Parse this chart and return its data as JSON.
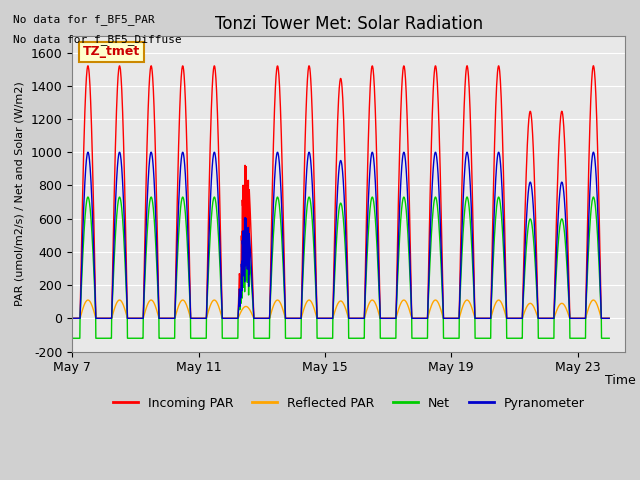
{
  "title": "Tonzi Tower Met: Solar Radiation",
  "ylabel": "PAR (umol/m2/s) / Net and Solar (W/m2)",
  "xlabel": "Time",
  "ylim": [
    -200,
    1700
  ],
  "yticks": [
    -200,
    0,
    200,
    400,
    600,
    800,
    1000,
    1200,
    1400,
    1600
  ],
  "xlim_days": [
    0,
    17.5
  ],
  "xtick_positions": [
    0,
    4,
    8,
    12,
    16
  ],
  "xtick_labels": [
    "May 7",
    "May 11",
    "May 15",
    "May 19",
    "May 23"
  ],
  "note1": "No data for f_BF5_PAR",
  "note2": "No data for f_BF5_Diffuse",
  "box_label": "TZ_tmet",
  "legend_colors": [
    "#ff0000",
    "#ffa500",
    "#00cc00",
    "#0000cc"
  ],
  "legend_labels": [
    "Incoming PAR",
    "Reflected PAR",
    "Net",
    "Pyranometer"
  ],
  "background_color": "#d0d0d0",
  "plot_bg_color": "#e8e8e8",
  "n_days": 17,
  "incoming_par_max": 1520,
  "reflected_par_max": 110,
  "net_max": 730,
  "pyranometer_max": 1000,
  "net_min": -120
}
